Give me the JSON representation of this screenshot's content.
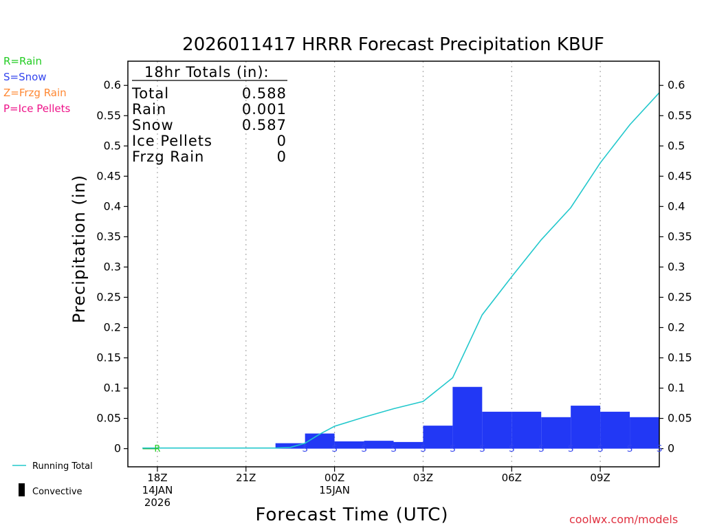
{
  "title": "2026011417 HRRR Forecast Precipitation KBUF",
  "ptype_legend": [
    {
      "label": "R=Rain",
      "color": "#22cc22"
    },
    {
      "label": "S=Snow",
      "color": "#3344ee"
    },
    {
      "label": "Z=Frzg Rain",
      "color": "#ff8833"
    },
    {
      "label": "P=Ice Pellets",
      "color": "#ee1188"
    }
  ],
  "totals_box": {
    "heading": "18hr Totals (in):",
    "rows": [
      {
        "label": "Total",
        "value": "0.588"
      },
      {
        "label": "Rain",
        "value": "0.001"
      },
      {
        "label": "Snow",
        "value": "0.587"
      },
      {
        "label": "Ice Pellets",
        "value": "0"
      },
      {
        "label": "Frzg Rain",
        "value": "0"
      }
    ]
  },
  "bottom_legend": {
    "running_total": "Running Total",
    "convective": "Convective"
  },
  "credit": "coolwx.com/models",
  "chart_data": {
    "type": "bar",
    "xlabel": "Forecast Time (UTC)",
    "ylabel": "Precipitation (in)",
    "ylim": [
      -0.03,
      0.64
    ],
    "xlim": [
      -1,
      17
    ],
    "grid": "vertical dotted lines at 3-hour ticks",
    "y_ticks": [
      "0",
      "0.05",
      "0.1",
      "0.15",
      "0.2",
      "0.25",
      "0.3",
      "0.35",
      "0.4",
      "0.45",
      "0.5",
      "0.55",
      "0.6"
    ],
    "x_ticks": [
      {
        "hour": 0,
        "lines": [
          "18Z",
          "14JAN",
          "2026"
        ]
      },
      {
        "hour": 3,
        "lines": [
          "21Z"
        ]
      },
      {
        "hour": 6,
        "lines": [
          "00Z",
          "15JAN"
        ]
      },
      {
        "hour": 9,
        "lines": [
          "03Z"
        ]
      },
      {
        "hour": 12,
        "lines": [
          "06Z"
        ]
      },
      {
        "hour": 15,
        "lines": [
          "09Z"
        ]
      }
    ],
    "hourly_precip": {
      "name": "Hourly Precipitation",
      "color": "#2238f5",
      "x": [
        4.5,
        5.5,
        6.5,
        7.5,
        8.5,
        9.5,
        10.5,
        11.5,
        12.5,
        13.5,
        14.5,
        15.5,
        16.5
      ],
      "values": [
        0.009,
        0.025,
        0.012,
        0.013,
        0.011,
        0.038,
        0.102,
        0.061,
        0.061,
        0.052,
        0.071,
        0.061,
        0.052
      ]
    },
    "running_total": {
      "name": "Running Total",
      "color": "#22c8cc",
      "x": [
        -0.5,
        0,
        1,
        2,
        3,
        4,
        4.5,
        5,
        5.5,
        6,
        7,
        8,
        9,
        10,
        11,
        12,
        13,
        14,
        15,
        16,
        17
      ],
      "values": [
        0.001,
        0.001,
        0.001,
        0.001,
        0.001,
        0.001,
        0.002,
        0.009,
        0.024,
        0.037,
        0.052,
        0.066,
        0.078,
        0.117,
        0.221,
        0.284,
        0.345,
        0.398,
        0.472,
        0.535,
        0.588
      ]
    },
    "ptype_markers": [
      {
        "x": 0,
        "label": "R",
        "color": "#22cc22"
      },
      {
        "x": 5,
        "label": "S",
        "color": "#3344ee"
      },
      {
        "x": 6,
        "label": "S",
        "color": "#3344ee"
      },
      {
        "x": 7,
        "label": "S",
        "color": "#3344ee"
      },
      {
        "x": 8,
        "label": "S",
        "color": "#3344ee"
      },
      {
        "x": 9,
        "label": "S",
        "color": "#3344ee"
      },
      {
        "x": 10,
        "label": "S",
        "color": "#3344ee"
      },
      {
        "x": 11,
        "label": "S",
        "color": "#3344ee"
      },
      {
        "x": 12,
        "label": "S",
        "color": "#3344ee"
      },
      {
        "x": 13,
        "label": "S",
        "color": "#3344ee"
      },
      {
        "x": 14,
        "label": "S",
        "color": "#3344ee"
      },
      {
        "x": 15,
        "label": "S",
        "color": "#3344ee"
      },
      {
        "x": 16,
        "label": "S",
        "color": "#3344ee"
      },
      {
        "x": 17,
        "label": "S",
        "color": "#3344ee"
      }
    ]
  }
}
